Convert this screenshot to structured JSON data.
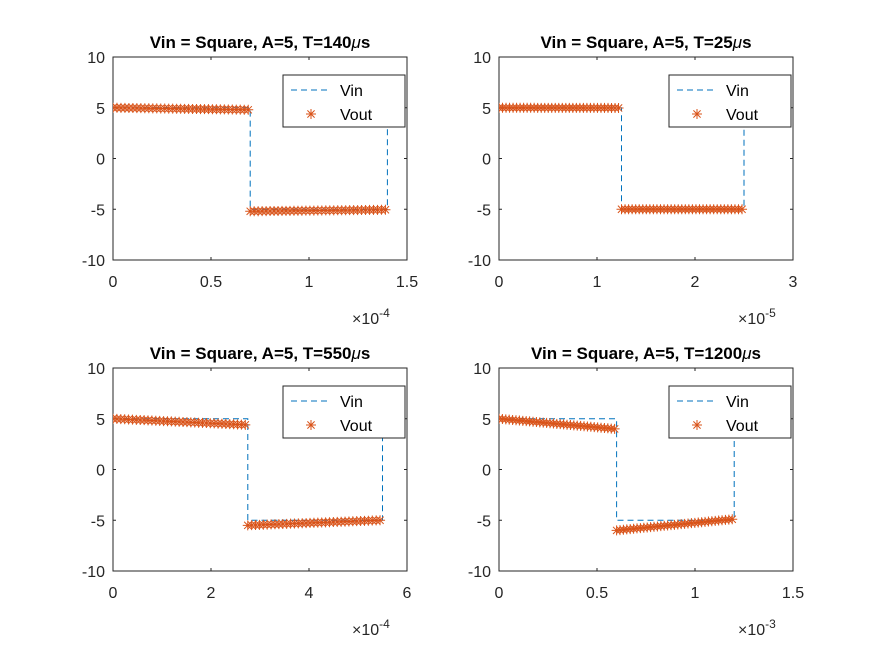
{
  "colors": {
    "vin": "#0072BD",
    "vout": "#D95319",
    "axes": "#262626",
    "background": "#ffffff"
  },
  "chart_data": [
    {
      "type": "line",
      "title_prefix": "Vin = Square, A=5, T=",
      "title_value": "140",
      "title_mu": "μ",
      "title_unit": "s",
      "xlim": [
        0,
        0.00015
      ],
      "ylim": [
        -10,
        10
      ],
      "xticks": [
        0,
        5e-05,
        0.0001,
        0.00015
      ],
      "xtick_labels": [
        "0",
        "0.5",
        "1",
        "1.5"
      ],
      "yticks": [
        -10,
        -5,
        0,
        5,
        10
      ],
      "ytick_labels": [
        "-10",
        "-5",
        "0",
        "5",
        "10"
      ],
      "x_exponent_base": "×10",
      "x_exponent_power": "-4",
      "grid": false,
      "legend": {
        "position": "top-right",
        "entries": [
          "Vin",
          "Vout"
        ]
      },
      "series": [
        {
          "name": "Vin",
          "style": "dashed",
          "x": [
            0,
            7e-05,
            7e-05,
            0.00014,
            0.00014
          ],
          "y": [
            5,
            5,
            -5,
            -5,
            5
          ]
        },
        {
          "name": "Vout",
          "style": "star-markers",
          "segments": [
            {
              "x0": 0,
              "x1": 6.9e-05,
              "y0": 5.0,
              "y1": 4.8,
              "n": 35
            },
            {
              "x0": 7e-05,
              "x1": 0.000139,
              "y0": -5.2,
              "y1": -5.05,
              "n": 35
            },
            {
              "x0": 0.00014,
              "x1": 0.00014,
              "y0": 5.0,
              "y1": 5.0,
              "n": 1
            }
          ]
        }
      ]
    },
    {
      "type": "line",
      "title_prefix": "Vin = Square, A=5, T=",
      "title_value": "25",
      "title_mu": "μ",
      "title_unit": "s",
      "xlim": [
        0,
        3e-05
      ],
      "ylim": [
        -10,
        10
      ],
      "xticks": [
        0,
        1e-05,
        2e-05,
        3e-05
      ],
      "xtick_labels": [
        "0",
        "1",
        "2",
        "3"
      ],
      "yticks": [
        -10,
        -5,
        0,
        5,
        10
      ],
      "ytick_labels": [
        "-10",
        "-5",
        "0",
        "5",
        "10"
      ],
      "x_exponent_base": "×10",
      "x_exponent_power": "-5",
      "grid": false,
      "legend": {
        "position": "top-right",
        "entries": [
          "Vin",
          "Vout"
        ]
      },
      "series": [
        {
          "name": "Vin",
          "style": "dashed",
          "x": [
            0,
            1.25e-05,
            1.25e-05,
            2.5e-05,
            2.5e-05
          ],
          "y": [
            5,
            5,
            -5,
            -5,
            5
          ]
        },
        {
          "name": "Vout",
          "style": "star-markers",
          "segments": [
            {
              "x0": 0,
              "x1": 1.22e-05,
              "y0": 5.0,
              "y1": 4.98,
              "n": 35
            },
            {
              "x0": 1.25e-05,
              "x1": 2.48e-05,
              "y0": -5.0,
              "y1": -5.0,
              "n": 35
            }
          ]
        }
      ]
    },
    {
      "type": "line",
      "title_prefix": "Vin = Square, A=5, T=",
      "title_value": "550",
      "title_mu": "μ",
      "title_unit": "s",
      "xlim": [
        0,
        0.0006
      ],
      "ylim": [
        -10,
        10
      ],
      "xticks": [
        0,
        0.0002,
        0.0004,
        0.0006
      ],
      "xtick_labels": [
        "0",
        "2",
        "4",
        "6"
      ],
      "yticks": [
        -10,
        -5,
        0,
        5,
        10
      ],
      "ytick_labels": [
        "-10",
        "-5",
        "0",
        "5",
        "10"
      ],
      "x_exponent_base": "×10",
      "x_exponent_power": "-4",
      "grid": false,
      "legend": {
        "position": "top-right",
        "entries": [
          "Vin",
          "Vout"
        ]
      },
      "series": [
        {
          "name": "Vin",
          "style": "dashed",
          "x": [
            0,
            0.000275,
            0.000275,
            0.00055,
            0.00055
          ],
          "y": [
            5,
            5,
            -5,
            -5,
            5
          ]
        },
        {
          "name": "Vout",
          "style": "star-markers",
          "segments": [
            {
              "x0": 0,
              "x1": 0.00027,
              "y0": 5.0,
              "y1": 4.4,
              "n": 35
            },
            {
              "x0": 0.000275,
              "x1": 0.000545,
              "y0": -5.5,
              "y1": -5.0,
              "n": 35
            },
            {
              "x0": 0.00055,
              "x1": 0.00055,
              "y0": 5.0,
              "y1": 5.0,
              "n": 1
            }
          ]
        }
      ]
    },
    {
      "type": "line",
      "title_prefix": "Vin = Square, A=5, T=",
      "title_value": "1200",
      "title_mu": "μ",
      "title_unit": "s",
      "xlim": [
        0,
        0.0015
      ],
      "ylim": [
        -10,
        10
      ],
      "xticks": [
        0,
        0.0005,
        0.001,
        0.0015
      ],
      "xtick_labels": [
        "0",
        "0.5",
        "1",
        "1.5"
      ],
      "yticks": [
        -10,
        -5,
        0,
        5,
        10
      ],
      "ytick_labels": [
        "-10",
        "-5",
        "0",
        "5",
        "10"
      ],
      "x_exponent_base": "×10",
      "x_exponent_power": "-3",
      "grid": false,
      "legend": {
        "position": "top-right",
        "entries": [
          "Vin",
          "Vout"
        ]
      },
      "series": [
        {
          "name": "Vin",
          "style": "dashed",
          "x": [
            0,
            0.0006,
            0.0006,
            0.0012,
            0.0012
          ],
          "y": [
            5,
            5,
            -5,
            -5,
            5
          ]
        },
        {
          "name": "Vout",
          "style": "star-markers",
          "segments": [
            {
              "x0": 0,
              "x1": 0.00059,
              "y0": 5.0,
              "y1": 4.0,
              "n": 35
            },
            {
              "x0": 0.0006,
              "x1": 0.00119,
              "y0": -6.0,
              "y1": -4.9,
              "n": 35
            }
          ]
        }
      ]
    }
  ]
}
